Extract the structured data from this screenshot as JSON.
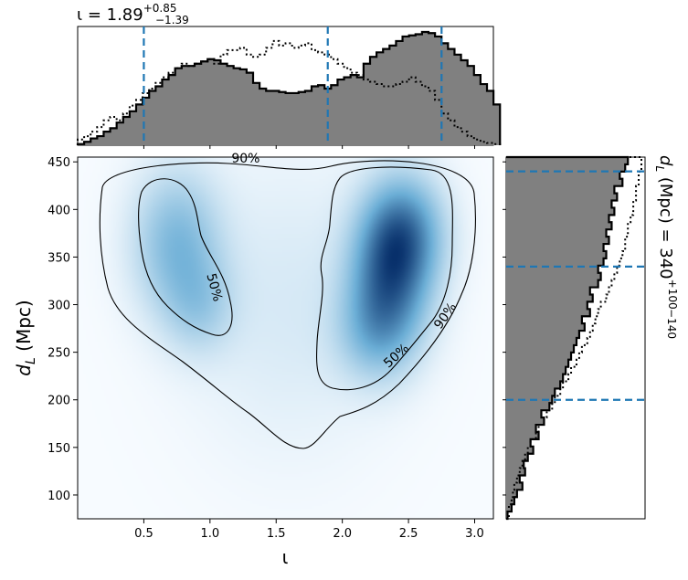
{
  "chart_data": {
    "type": "scatter",
    "description_kind": "corner-plot",
    "top_title": {
      "prefix": "ι = 1.89",
      "sup": "+0.85",
      "sub": "−1.39"
    },
    "right_title": {
      "prefix": "d",
      "prefix_sub": "L",
      "middle": " (Mpc) = 340",
      "sup": "+100",
      "sub": "−140"
    },
    "xlabel": "ι",
    "ylabel": {
      "main": "d",
      "sub": "L",
      "rest": " (Mpc)"
    },
    "xlim": [
      0.0,
      3.14159
    ],
    "ylim": [
      75,
      455
    ],
    "xticks": [
      0.5,
      1.0,
      1.5,
      2.0,
      2.5,
      3.0
    ],
    "xtick_labels": [
      "0.5",
      "1.0",
      "1.5",
      "2.0",
      "2.5",
      "3.0"
    ],
    "yticks": [
      100,
      150,
      200,
      250,
      300,
      350,
      400,
      450
    ],
    "ytick_labels": [
      "100",
      "150",
      "200",
      "250",
      "300",
      "350",
      "400",
      "450"
    ],
    "quantiles_iota": [
      0.5,
      1.89,
      2.75
    ],
    "quantiles_dl": [
      200,
      340,
      440
    ],
    "contour_labels": [
      {
        "text": "90%",
        "x": 1.27,
        "y": 453,
        "rot": 0
      },
      {
        "text": "50%",
        "x": 1.03,
        "y": 318,
        "rot": 75
      },
      {
        "text": "50%",
        "x": 2.41,
        "y": 246,
        "rot": -42
      },
      {
        "text": "90%",
        "x": 2.78,
        "y": 288,
        "rot": -55
      }
    ],
    "density_modes": [
      {
        "x": 0.75,
        "y": 365,
        "sx": 0.22,
        "sy": 50,
        "w": 0.55
      },
      {
        "x": 0.92,
        "y": 300,
        "sx": 0.18,
        "sy": 35,
        "w": 0.3
      },
      {
        "x": 2.45,
        "y": 375,
        "sx": 0.2,
        "sy": 40,
        "w": 1.0
      },
      {
        "x": 2.35,
        "y": 320,
        "sx": 0.2,
        "sy": 45,
        "w": 0.9
      },
      {
        "x": 2.25,
        "y": 270,
        "sx": 0.2,
        "sy": 35,
        "w": 0.4
      },
      {
        "x": 1.6,
        "y": 300,
        "sx": 0.5,
        "sy": 100,
        "w": 0.12
      }
    ],
    "iota_hist_solid": {
      "bin_edges_start": 0.0,
      "bin_width": 0.0491,
      "values": [
        0.01,
        0.03,
        0.06,
        0.08,
        0.12,
        0.15,
        0.2,
        0.25,
        0.3,
        0.36,
        0.42,
        0.48,
        0.52,
        0.58,
        0.62,
        0.68,
        0.7,
        0.7,
        0.72,
        0.74,
        0.76,
        0.75,
        0.72,
        0.7,
        0.68,
        0.67,
        0.64,
        0.55,
        0.5,
        0.48,
        0.48,
        0.47,
        0.46,
        0.46,
        0.47,
        0.48,
        0.52,
        0.53,
        0.5,
        0.53,
        0.58,
        0.6,
        0.62,
        0.6,
        0.72,
        0.78,
        0.82,
        0.85,
        0.88,
        0.92,
        0.96,
        0.97,
        0.98,
        1.0,
        0.99,
        0.96,
        0.9,
        0.85,
        0.8,
        0.75,
        0.7,
        0.62,
        0.54,
        0.48,
        0.36
      ]
    },
    "iota_hist_dotted": {
      "bin_edges_start": 0.0,
      "bin_width": 0.0491,
      "values": [
        0.05,
        0.08,
        0.12,
        0.16,
        0.22,
        0.25,
        0.22,
        0.28,
        0.35,
        0.4,
        0.46,
        0.5,
        0.55,
        0.6,
        0.64,
        0.68,
        0.72,
        0.7,
        0.72,
        0.74,
        0.76,
        0.72,
        0.8,
        0.84,
        0.84,
        0.86,
        0.8,
        0.78,
        0.8,
        0.86,
        0.92,
        0.88,
        0.9,
        0.86,
        0.88,
        0.9,
        0.84,
        0.82,
        0.8,
        0.76,
        0.72,
        0.68,
        0.64,
        0.62,
        0.58,
        0.56,
        0.54,
        0.52,
        0.52,
        0.54,
        0.56,
        0.6,
        0.56,
        0.52,
        0.48,
        0.4,
        0.28,
        0.22,
        0.16,
        0.12,
        0.08,
        0.05,
        0.03,
        0.02,
        0.01
      ]
    },
    "dl_hist_solid": {
      "bin_edges_start": 75,
      "bin_width": 7.6,
      "values": [
        0.01,
        0.04,
        0.06,
        0.08,
        0.12,
        0.1,
        0.14,
        0.13,
        0.16,
        0.2,
        0.18,
        0.24,
        0.22,
        0.28,
        0.26,
        0.32,
        0.34,
        0.36,
        0.4,
        0.42,
        0.44,
        0.46,
        0.48,
        0.5,
        0.52,
        0.54,
        0.58,
        0.56,
        0.62,
        0.6,
        0.64,
        0.62,
        0.68,
        0.7,
        0.68,
        0.72,
        0.74,
        0.72,
        0.76,
        0.74,
        0.78,
        0.76,
        0.8,
        0.78,
        0.82,
        0.8,
        0.86,
        0.84,
        0.88,
        0.9
      ]
    },
    "dl_hist_dotted": {
      "bin_edges_start": 75,
      "bin_width": 7.6,
      "values": [
        0.02,
        0.02,
        0.04,
        0.05,
        0.06,
        0.08,
        0.1,
        0.12,
        0.14,
        0.16,
        0.18,
        0.22,
        0.24,
        0.28,
        0.3,
        0.34,
        0.36,
        0.4,
        0.42,
        0.46,
        0.48,
        0.52,
        0.54,
        0.56,
        0.6,
        0.62,
        0.64,
        0.66,
        0.68,
        0.7,
        0.74,
        0.76,
        0.78,
        0.8,
        0.82,
        0.84,
        0.86,
        0.88,
        0.88,
        0.9,
        0.9,
        0.92,
        0.94,
        0.94,
        0.96,
        0.96,
        0.98,
        0.98,
        1.0,
        1.0
      ]
    },
    "colors": {
      "hist_fill": "#808080",
      "quantile_line": "#1f77b4",
      "density_low": "#f7fbff",
      "density_high": "#08306b",
      "contour": "#000000"
    }
  }
}
